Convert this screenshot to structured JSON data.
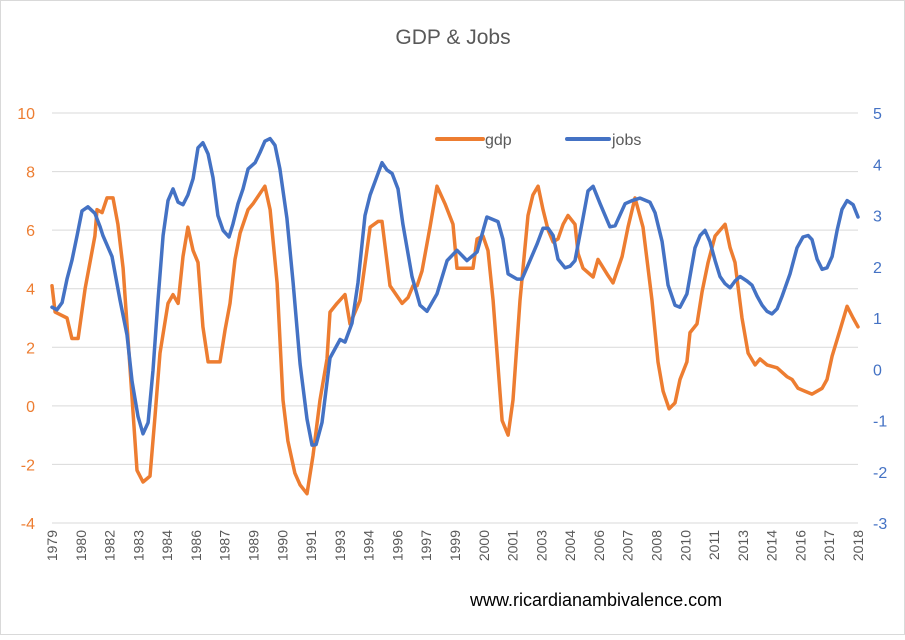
{
  "chart_data": {
    "type": "line",
    "title": "GDP & Jobs",
    "xlabel": "",
    "ylabel": "",
    "xlim": [
      1979,
      2018.25
    ],
    "ylim_left": [
      -4,
      10
    ],
    "ylim_right": [
      -3,
      5
    ],
    "left_ticks": [
      10,
      8,
      6,
      4,
      2,
      0,
      -2,
      -4
    ],
    "right_ticks": [
      5,
      4,
      3,
      2,
      1,
      0,
      -1,
      -2,
      -3
    ],
    "x_tick_labels": [
      "1979",
      "1980",
      "1982",
      "1983",
      "1984",
      "1986",
      "1987",
      "1989",
      "1990",
      "1991",
      "1993",
      "1994",
      "1996",
      "1997",
      "1999",
      "2000",
      "2001",
      "2003",
      "2004",
      "2006",
      "2007",
      "2008",
      "2010",
      "2011",
      "2013",
      "2014",
      "2016",
      "2017",
      "2018"
    ],
    "grid": true,
    "legend_position": "top-center",
    "annotation": "www.ricardianambivalence.com",
    "series": [
      {
        "name": "gdp",
        "axis": "left",
        "color": "#ED7D31",
        "x": [
          1979.0,
          1979.15,
          1979.73,
          1979.97,
          1980.27,
          1980.61,
          1981.09,
          1981.19,
          1981.44,
          1981.68,
          1981.97,
          1982.21,
          1982.46,
          1982.8,
          1983.14,
          1983.43,
          1983.77,
          1984.01,
          1984.26,
          1984.65,
          1984.89,
          1985.14,
          1985.38,
          1985.62,
          1985.87,
          1986.11,
          1986.35,
          1986.6,
          1987.18,
          1987.43,
          1987.67,
          1987.91,
          1988.16,
          1988.55,
          1988.79,
          1989.37,
          1989.62,
          1989.96,
          1990.25,
          1990.49,
          1990.83,
          1991.08,
          1991.42,
          1991.71,
          1992.05,
          1992.39,
          1992.54,
          1992.88,
          1993.27,
          1993.51,
          1994.0,
          1994.49,
          1994.88,
          1995.07,
          1995.46,
          1996.05,
          1996.34,
          1996.58,
          1996.78,
          1997.02,
          1997.41,
          1997.75,
          1998.14,
          1998.53,
          1998.72,
          1998.97,
          1999.5,
          1999.7,
          1999.99,
          2000.23,
          2000.48,
          2000.92,
          2001.21,
          2001.45,
          2001.79,
          2002.18,
          2002.42,
          2002.67,
          2002.91,
          2003.16,
          2003.4,
          2003.64,
          2003.89,
          2004.13,
          2004.47,
          2004.62,
          2004.86,
          2005.35,
          2005.59,
          2006.03,
          2006.32,
          2006.76,
          2007.05,
          2007.39,
          2007.78,
          2008.22,
          2008.51,
          2008.76,
          2009.05,
          2009.34,
          2009.58,
          2009.92,
          2010.07,
          2010.41,
          2010.66,
          2010.95,
          2011.29,
          2011.78,
          2012.02,
          2012.26,
          2012.6,
          2012.9,
          2013.24,
          2013.48,
          2013.82,
          2014.31,
          2014.79,
          2015.04,
          2015.33,
          2015.67,
          2016.01,
          2016.5,
          2016.74,
          2016.99,
          2017.38,
          2017.72,
          2018.01,
          2018.25
        ],
        "y": [
          4.1,
          3.2,
          3.0,
          2.3,
          2.3,
          4.0,
          5.8,
          6.7,
          6.6,
          7.1,
          7.1,
          6.2,
          4.7,
          1.3,
          -2.2,
          -2.6,
          -2.4,
          -0.4,
          1.8,
          3.5,
          3.8,
          3.5,
          5.1,
          6.1,
          5.3,
          4.9,
          2.7,
          1.5,
          1.5,
          2.6,
          3.5,
          5.0,
          5.9,
          6.7,
          6.9,
          7.5,
          6.7,
          4.2,
          0.2,
          -1.2,
          -2.3,
          -2.7,
          -3.0,
          -1.7,
          0.2,
          1.6,
          3.2,
          3.5,
          3.8,
          2.8,
          3.6,
          6.1,
          6.3,
          6.3,
          4.1,
          3.5,
          3.7,
          4.1,
          4.1,
          4.6,
          6.1,
          7.5,
          6.9,
          6.2,
          4.7,
          4.7,
          4.7,
          5.7,
          5.8,
          5.3,
          3.6,
          -0.5,
          -1.0,
          0.2,
          3.6,
          6.5,
          7.2,
          7.5,
          6.7,
          6.0,
          5.6,
          5.7,
          6.2,
          6.5,
          6.2,
          5.2,
          4.7,
          4.4,
          5.0,
          4.5,
          4.2,
          5.1,
          6.1,
          7.1,
          6.1,
          3.6,
          1.5,
          0.5,
          -0.1,
          0.1,
          0.9,
          1.5,
          2.5,
          2.8,
          3.9,
          4.9,
          5.8,
          6.2,
          5.4,
          4.9,
          3.0,
          1.8,
          1.4,
          1.6,
          1.4,
          1.3,
          1.0,
          0.9,
          0.6,
          0.5,
          0.4,
          0.6,
          0.9,
          1.7,
          2.6,
          3.4,
          3.0,
          2.7
        ]
      },
      {
        "name": "jobs",
        "axis": "right",
        "color": "#4472C4",
        "x": [
          1979.0,
          1979.24,
          1979.49,
          1979.73,
          1979.97,
          1980.22,
          1980.46,
          1980.75,
          1981.09,
          1981.34,
          1981.48,
          1981.92,
          1982.31,
          1982.65,
          1982.9,
          1983.19,
          1983.43,
          1983.68,
          1983.92,
          1984.16,
          1984.41,
          1984.65,
          1984.89,
          1985.14,
          1985.38,
          1985.62,
          1985.87,
          1986.11,
          1986.35,
          1986.6,
          1986.84,
          1987.08,
          1987.33,
          1987.62,
          1987.81,
          1988.06,
          1988.3,
          1988.55,
          1988.89,
          1989.13,
          1989.37,
          1989.62,
          1989.86,
          1990.1,
          1990.44,
          1990.74,
          1991.08,
          1991.42,
          1991.66,
          1991.86,
          1992.15,
          1992.54,
          1993.03,
          1993.27,
          1993.61,
          1993.9,
          1994.24,
          1994.49,
          1995.07,
          1995.31,
          1995.56,
          1995.85,
          1996.09,
          1996.53,
          1996.92,
          1997.26,
          1997.75,
          1998.24,
          1998.72,
          1999.21,
          1999.7,
          2000.18,
          2000.72,
          2000.96,
          2001.21,
          2001.65,
          2001.89,
          2002.18,
          2002.62,
          2002.91,
          2003.16,
          2003.4,
          2003.64,
          2003.98,
          2004.23,
          2004.47,
          2004.86,
          2005.1,
          2005.35,
          2005.69,
          2006.17,
          2006.42,
          2006.91,
          2007.25,
          2007.64,
          2008.12,
          2008.37,
          2008.71,
          2009.0,
          2009.34,
          2009.58,
          2009.92,
          2010.31,
          2010.56,
          2010.8,
          2011.04,
          2011.29,
          2011.53,
          2011.78,
          2012.02,
          2012.26,
          2012.51,
          2012.85,
          2013.09,
          2013.33,
          2013.58,
          2013.82,
          2014.06,
          2014.31,
          2014.55,
          2014.94,
          2015.28,
          2015.57,
          2015.82,
          2016.01,
          2016.26,
          2016.5,
          2016.74,
          2016.99,
          2017.23,
          2017.47,
          2017.72,
          2018.01,
          2018.25
        ],
        "y": [
          1.21,
          1.16,
          1.3,
          1.76,
          2.12,
          2.61,
          3.09,
          3.17,
          3.04,
          2.78,
          2.61,
          2.2,
          1.35,
          0.67,
          -0.24,
          -0.92,
          -1.26,
          -1.04,
          -0.02,
          1.35,
          2.61,
          3.29,
          3.52,
          3.26,
          3.21,
          3.4,
          3.72,
          4.32,
          4.42,
          4.2,
          3.74,
          3.0,
          2.71,
          2.58,
          2.83,
          3.23,
          3.52,
          3.91,
          4.03,
          4.23,
          4.45,
          4.5,
          4.37,
          3.91,
          2.95,
          1.69,
          0.1,
          -0.97,
          -1.48,
          -1.47,
          -1.04,
          0.22,
          0.58,
          0.53,
          0.9,
          1.69,
          3.0,
          3.4,
          4.03,
          3.89,
          3.82,
          3.52,
          2.83,
          1.81,
          1.25,
          1.13,
          1.47,
          2.12,
          2.32,
          2.12,
          2.29,
          2.97,
          2.88,
          2.54,
          1.86,
          1.76,
          1.76,
          2.03,
          2.44,
          2.75,
          2.75,
          2.61,
          2.15,
          1.98,
          2.01,
          2.12,
          2.95,
          3.48,
          3.57,
          3.23,
          2.78,
          2.8,
          3.23,
          3.29,
          3.34,
          3.26,
          3.05,
          2.49,
          1.64,
          1.25,
          1.21,
          1.47,
          2.37,
          2.61,
          2.71,
          2.49,
          2.12,
          1.81,
          1.67,
          1.59,
          1.72,
          1.81,
          1.72,
          1.64,
          1.43,
          1.25,
          1.13,
          1.08,
          1.18,
          1.42,
          1.86,
          2.37,
          2.58,
          2.61,
          2.53,
          2.15,
          1.95,
          1.98,
          2.2,
          2.71,
          3.12,
          3.29,
          3.21,
          2.97
        ]
      }
    ]
  }
}
